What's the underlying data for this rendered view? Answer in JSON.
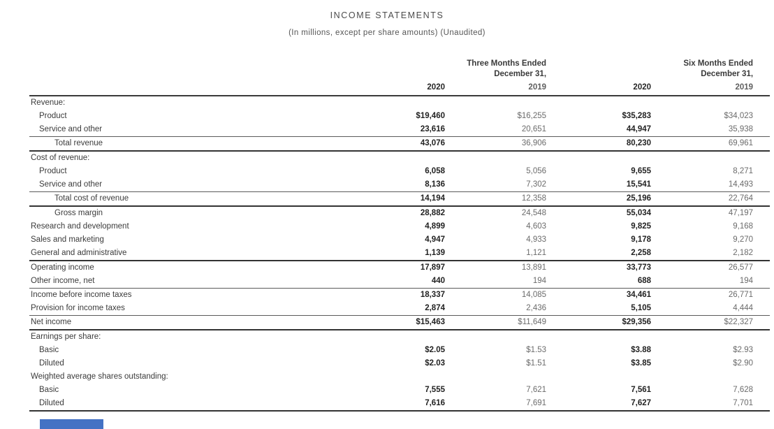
{
  "title": "INCOME STATEMENTS",
  "subtitle": "(In millions, except per share amounts) (Unaudited)",
  "header": {
    "period_three": "Three Months Ended",
    "period_six": "Six Months Ended",
    "date_line_three": "December 31,",
    "date_line_six": "December 31,",
    "years": [
      "2020",
      "2019",
      "2020",
      "2019"
    ]
  },
  "rows": [
    {
      "label": "Revenue:",
      "indent": 0,
      "border": "none",
      "values": [
        "",
        "",
        "",
        ""
      ]
    },
    {
      "label": "Product",
      "indent": 1,
      "border": "none",
      "values": [
        "$19,460",
        "$16,255",
        "$35,283",
        "$34,023"
      ]
    },
    {
      "label": "Service and other",
      "indent": 1,
      "border": "thin",
      "values": [
        "23,616",
        "20,651",
        "44,947",
        "35,938"
      ]
    },
    {
      "label": "Total revenue",
      "indent": 2,
      "border": "thick",
      "values": [
        "43,076",
        "36,906",
        "80,230",
        "69,961"
      ]
    },
    {
      "label": "Cost of revenue:",
      "indent": 0,
      "border": "none",
      "values": [
        "",
        "",
        "",
        ""
      ]
    },
    {
      "label": "Product",
      "indent": 1,
      "border": "none",
      "values": [
        "6,058",
        "5,056",
        "9,655",
        "8,271"
      ]
    },
    {
      "label": "Service and other",
      "indent": 1,
      "border": "thin",
      "values": [
        "8,136",
        "7,302",
        "15,541",
        "14,493"
      ]
    },
    {
      "label": "Total cost of revenue",
      "indent": 2,
      "border": "thick",
      "values": [
        "14,194",
        "12,358",
        "25,196",
        "22,764"
      ]
    },
    {
      "label": "Gross margin",
      "indent": 2,
      "border": "none",
      "values": [
        "28,882",
        "24,548",
        "55,034",
        "47,197"
      ]
    },
    {
      "label": "Research and development",
      "indent": 0,
      "border": "none",
      "values": [
        "4,899",
        "4,603",
        "9,825",
        "9,168"
      ]
    },
    {
      "label": "Sales and marketing",
      "indent": 0,
      "border": "none",
      "values": [
        "4,947",
        "4,933",
        "9,178",
        "9,270"
      ]
    },
    {
      "label": "General and administrative",
      "indent": 0,
      "border": "thick",
      "values": [
        "1,139",
        "1,121",
        "2,258",
        "2,182"
      ]
    },
    {
      "label": "Operating income",
      "indent": 0,
      "border": "none",
      "values": [
        "17,897",
        "13,891",
        "33,773",
        "26,577"
      ]
    },
    {
      "label": "Other income, net",
      "indent": 0,
      "border": "thin",
      "values": [
        "440",
        "194",
        "688",
        "194"
      ]
    },
    {
      "label": "Income before income taxes",
      "indent": 0,
      "border": "none",
      "values": [
        "18,337",
        "14,085",
        "34,461",
        "26,771"
      ]
    },
    {
      "label": "Provision for income taxes",
      "indent": 0,
      "border": "thin",
      "values": [
        "2,874",
        "2,436",
        "5,105",
        "4,444"
      ]
    },
    {
      "label": "Net income",
      "indent": 0,
      "border": "thick",
      "values": [
        "$15,463",
        "$11,649",
        "$29,356",
        "$22,327"
      ]
    },
    {
      "label": "Earnings per share:",
      "indent": 0,
      "border": "none",
      "values": [
        "",
        "",
        "",
        ""
      ]
    },
    {
      "label": "Basic",
      "indent": 1,
      "border": "none",
      "values": [
        "$2.05",
        "$1.53",
        "$3.88",
        "$2.93"
      ]
    },
    {
      "label": "Diluted",
      "indent": 1,
      "border": "none",
      "values": [
        "$2.03",
        "$1.51",
        "$3.85",
        "$2.90"
      ]
    },
    {
      "label": "Weighted average shares outstanding:",
      "indent": 0,
      "border": "none",
      "values": [
        "",
        "",
        "",
        ""
      ]
    },
    {
      "label": "Basic",
      "indent": 1,
      "border": "none",
      "values": [
        "7,555",
        "7,621",
        "7,561",
        "7,628"
      ]
    },
    {
      "label": "Diluted",
      "indent": 1,
      "border": "thick",
      "values": [
        "7,616",
        "7,691",
        "7,627",
        "7,701"
      ]
    }
  ],
  "footer_marker": {
    "color": "#4472c4"
  }
}
